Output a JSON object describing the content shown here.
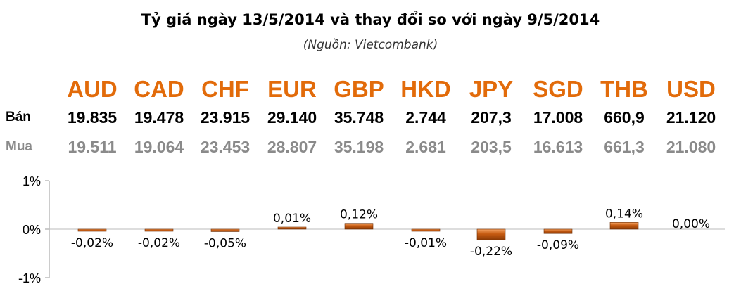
{
  "title": "Tỷ giá ngày 13/5/2014 và thay đổi so với ngày 9/5/2014",
  "subtitle": "(Nguồn: Vietcombank)",
  "colors": {
    "currency": "#e26b0a",
    "bar": "#c55a11",
    "buy_text": "#8a8a8a"
  },
  "table": {
    "currencies": [
      "AUD",
      "CAD",
      "CHF",
      "EUR",
      "GBP",
      "HKD",
      "JPY",
      "SGD",
      "THB",
      "USD"
    ],
    "sell_label": "Bán",
    "buy_label": "Mua",
    "sell": [
      "19.835",
      "19.478",
      "23.915",
      "29.140",
      "35.748",
      "2.744",
      "207,3",
      "17.008",
      "660,9",
      "21.120"
    ],
    "buy": [
      "19.511",
      "19.064",
      "23.453",
      "28.807",
      "35.198",
      "2.681",
      "203,5",
      "16.613",
      "661,3",
      "21.080"
    ]
  },
  "chart_data": {
    "type": "bar",
    "categories": [
      "AUD",
      "CAD",
      "CHF",
      "EUR",
      "GBP",
      "HKD",
      "JPY",
      "SGD",
      "THB",
      "USD"
    ],
    "values": [
      -0.02,
      -0.02,
      -0.05,
      0.01,
      0.12,
      -0.01,
      -0.22,
      -0.09,
      0.14,
      0.0
    ],
    "data_labels": [
      "-0,02%",
      "-0,02%",
      "-0,05%",
      "0,01%",
      "0,12%",
      "-0,01%",
      "-0,22%",
      "-0,09%",
      "0,14%",
      "0,00%"
    ],
    "ylim": [
      -1,
      1
    ],
    "yticks": [
      "1%",
      "0%",
      "-1%"
    ],
    "grid": false,
    "legend": "none"
  }
}
